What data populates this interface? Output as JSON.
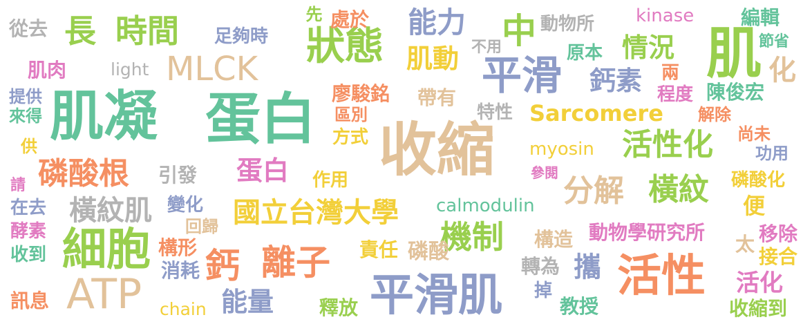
{
  "words": [
    {
      "id": "w1",
      "text": "收縮",
      "color": "sand"
    },
    {
      "id": "w2",
      "text": "肌凝",
      "color": "green"
    },
    {
      "id": "w3",
      "text": "蛋白",
      "color": "green"
    },
    {
      "id": "w4",
      "text": "平滑肌",
      "color": "blue"
    },
    {
      "id": "w5",
      "text": "活性",
      "color": "orange"
    },
    {
      "id": "w6",
      "text": "細胞",
      "color": "lime"
    },
    {
      "id": "w7",
      "text": "ATP",
      "color": "sand"
    },
    {
      "id": "w8",
      "text": "鈣",
      "color": "orange"
    },
    {
      "id": "w9",
      "text": "離子",
      "color": "orange"
    },
    {
      "id": "w10",
      "text": "狀態",
      "color": "lime"
    },
    {
      "id": "w11",
      "text": "平滑",
      "color": "blue"
    },
    {
      "id": "w12",
      "text": "肌",
      "color": "lime"
    },
    {
      "id": "w13",
      "text": "中",
      "color": "lime"
    },
    {
      "id": "w14",
      "text": "長",
      "color": "lime"
    },
    {
      "id": "w15",
      "text": "時間",
      "color": "lime"
    },
    {
      "id": "w16",
      "text": "MLCK",
      "color": "sand"
    },
    {
      "id": "w17",
      "text": "磷酸根",
      "color": "orange"
    },
    {
      "id": "w18",
      "text": "活性化",
      "color": "lime"
    },
    {
      "id": "w19",
      "text": "機制",
      "color": "lime"
    },
    {
      "id": "w20",
      "text": "國立台灣大學",
      "color": "yellow"
    },
    {
      "id": "w21",
      "text": "分解",
      "color": "sand"
    },
    {
      "id": "w22",
      "text": "橫紋",
      "color": "lime"
    },
    {
      "id": "w23",
      "text": "蛋白",
      "color": "pink"
    },
    {
      "id": "w24",
      "text": "橫紋肌",
      "color": "gray"
    },
    {
      "id": "w25",
      "text": "能力",
      "color": "blue"
    },
    {
      "id": "w26",
      "text": "肌動",
      "color": "yellow"
    },
    {
      "id": "w27",
      "text": "情況",
      "color": "lime"
    },
    {
      "id": "w28",
      "text": "鈣素",
      "color": "blue"
    },
    {
      "id": "w29",
      "text": "Sarcomere",
      "color": "yellow"
    },
    {
      "id": "w30",
      "text": "能量",
      "color": "blue"
    },
    {
      "id": "w31",
      "text": "攜",
      "color": "blue"
    },
    {
      "id": "w32",
      "text": "活化",
      "color": "pink"
    },
    {
      "id": "w33",
      "text": "calmodulin",
      "color": "green"
    },
    {
      "id": "w34",
      "text": "動物學研究所",
      "color": "pink"
    },
    {
      "id": "w35",
      "text": "myosin",
      "color": "yellow"
    },
    {
      "id": "w36",
      "text": "kinase",
      "color": "pink"
    },
    {
      "id": "w37",
      "text": "chain",
      "color": "yellow"
    },
    {
      "id": "w38",
      "text": "light",
      "color": "gray"
    },
    {
      "id": "w39",
      "text": "肌肉",
      "color": "pink"
    },
    {
      "id": "w40",
      "text": "從去",
      "color": "gray"
    },
    {
      "id": "w41",
      "text": "足夠時",
      "color": "blue"
    },
    {
      "id": "w42",
      "text": "先",
      "color": "lime"
    },
    {
      "id": "w43",
      "text": "處於",
      "color": "orange"
    },
    {
      "id": "w44",
      "text": "動物所",
      "color": "gray"
    },
    {
      "id": "w45",
      "text": "編輯",
      "color": "green"
    },
    {
      "id": "w46",
      "text": "節省",
      "color": "green"
    },
    {
      "id": "w47",
      "text": "不用",
      "color": "gray"
    },
    {
      "id": "w48",
      "text": "原本",
      "color": "green"
    },
    {
      "id": "w49",
      "text": "兩",
      "color": "orange"
    },
    {
      "id": "w50",
      "text": "化",
      "color": "sand"
    },
    {
      "id": "w51",
      "text": "廖駿銘",
      "color": "orange"
    },
    {
      "id": "w52",
      "text": "帶有",
      "color": "sand"
    },
    {
      "id": "w53",
      "text": "程度",
      "color": "pink"
    },
    {
      "id": "w54",
      "text": "陳俊宏",
      "color": "green"
    },
    {
      "id": "w55",
      "text": "提供",
      "color": "blue"
    },
    {
      "id": "w56",
      "text": "來得",
      "color": "green"
    },
    {
      "id": "w57",
      "text": "區別",
      "color": "orange"
    },
    {
      "id": "w58",
      "text": "特性",
      "color": "gray"
    },
    {
      "id": "w59",
      "text": "解除",
      "color": "orange"
    },
    {
      "id": "w60",
      "text": "方式",
      "color": "yellow"
    },
    {
      "id": "w61",
      "text": "尚未",
      "color": "orange"
    },
    {
      "id": "w62",
      "text": "供",
      "color": "yellow"
    },
    {
      "id": "w63",
      "text": "功用",
      "color": "blue"
    },
    {
      "id": "w64",
      "text": "引發",
      "color": "gray"
    },
    {
      "id": "w65",
      "text": "參閱",
      "color": "pink"
    },
    {
      "id": "w66",
      "text": "磷酸化",
      "color": "yellow"
    },
    {
      "id": "w67",
      "text": "作用",
      "color": "yellow"
    },
    {
      "id": "w68",
      "text": "請",
      "color": "pink"
    },
    {
      "id": "w69",
      "text": "在去",
      "color": "blue"
    },
    {
      "id": "w70",
      "text": "變化",
      "color": "blue"
    },
    {
      "id": "w71",
      "text": "便",
      "color": "yellow"
    },
    {
      "id": "w72",
      "text": "回歸",
      "color": "sand"
    },
    {
      "id": "w73",
      "text": "酵素",
      "color": "pink"
    },
    {
      "id": "w74",
      "text": "構造",
      "color": "sand"
    },
    {
      "id": "w75",
      "text": "移除",
      "color": "pink"
    },
    {
      "id": "w76",
      "text": "太",
      "color": "sand"
    },
    {
      "id": "w77",
      "text": "收到",
      "color": "green"
    },
    {
      "id": "w78",
      "text": "構形",
      "color": "orange"
    },
    {
      "id": "w79",
      "text": "責任",
      "color": "yellow"
    },
    {
      "id": "w80",
      "text": "磷酸",
      "color": "sand"
    },
    {
      "id": "w81",
      "text": "接合",
      "color": "yellow"
    },
    {
      "id": "w82",
      "text": "消耗",
      "color": "blue"
    },
    {
      "id": "w83",
      "text": "轉為",
      "color": "gray"
    },
    {
      "id": "w84",
      "text": "訊息",
      "color": "orange"
    },
    {
      "id": "w85",
      "text": "掉",
      "color": "blue"
    },
    {
      "id": "w86",
      "text": "教授",
      "color": "green"
    },
    {
      "id": "w87",
      "text": "釋放",
      "color": "lime"
    },
    {
      "id": "w88",
      "text": "收縮到",
      "color": "lime"
    }
  ]
}
